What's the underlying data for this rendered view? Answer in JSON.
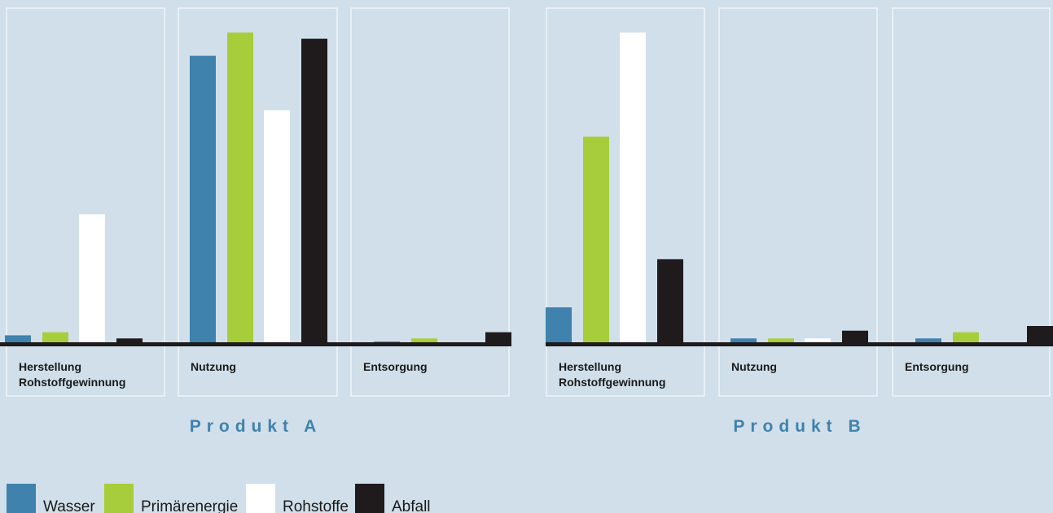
{
  "chart_data": {
    "type": "bar",
    "title": "",
    "xlabel": "",
    "ylabel": "",
    "ylim": [
      0,
      100
    ],
    "grid": false,
    "legend_position": "bottom-left",
    "series": [
      {
        "name": "Wasser",
        "color": "#3f82ad"
      },
      {
        "name": "Primärenergie",
        "color": "#a8cd3a"
      },
      {
        "name": "Rohstoffe",
        "color": "#ffffff"
      },
      {
        "name": "Abfall",
        "color": "#1f1a1c"
      }
    ],
    "products": [
      {
        "name": "Produkt A",
        "phases": [
          {
            "label_lines": [
              "Herstellung",
              "Rohstoffgewinnung"
            ],
            "values": [
              2.5,
              3.5,
              41.5,
              1.5
            ]
          },
          {
            "label_lines": [
              "Nutzung"
            ],
            "values": [
              92.5,
              100,
              75,
              98
            ]
          },
          {
            "label_lines": [
              "Entsorgung"
            ],
            "values": [
              0.5,
              1.5,
              0,
              3.5
            ]
          }
        ]
      },
      {
        "name": "Produkt B",
        "phases": [
          {
            "label_lines": [
              "Herstellung",
              "Rohstoffgewinnung"
            ],
            "values": [
              11.5,
              66.5,
              100,
              27
            ]
          },
          {
            "label_lines": [
              "Nutzung"
            ],
            "values": [
              1.5,
              1.5,
              1.5,
              4
            ]
          },
          {
            "label_lines": [
              "Entsorgung"
            ],
            "values": [
              1.5,
              3.5,
              0,
              5.5
            ]
          }
        ]
      }
    ]
  }
}
